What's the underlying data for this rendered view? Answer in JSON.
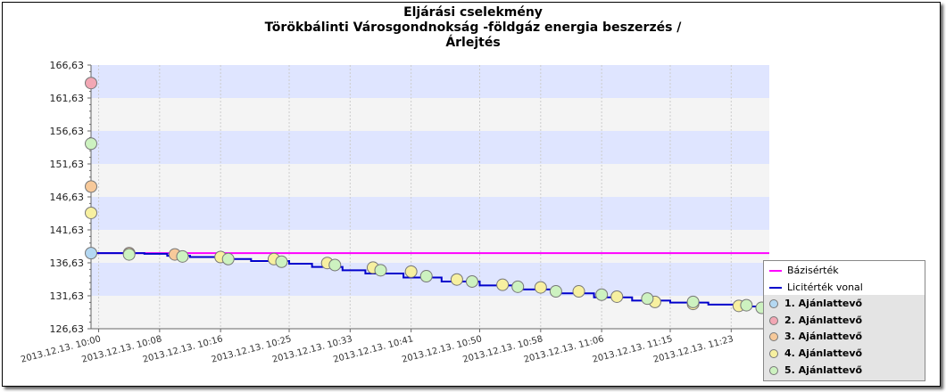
{
  "title": {
    "line1": "Eljárási cselekmény",
    "line2": "Törökbálinti Városgondnokság -földgáz energia beszerzés /",
    "line3": "Árlejtés"
  },
  "colors": {
    "band_blue": "#dfe5ff",
    "band_gray": "#f4f4f4",
    "base_line": "#ff00ff",
    "limit_line": "#0000cc",
    "bidder1": "#b4d8f2",
    "bidder2": "#f2a7b4",
    "bidder3": "#f7c99a",
    "bidder4": "#f7f0a0",
    "bidder5": "#cdf2c0"
  },
  "chart_data": {
    "type": "line",
    "ylim": [
      126.63,
      166.63
    ],
    "y_ticks": [
      "126,63",
      "131,63",
      "136,63",
      "141,63",
      "146,63",
      "151,63",
      "156,63",
      "161,63",
      "166,63"
    ],
    "y_tick_values": [
      126.63,
      131.63,
      136.63,
      141.63,
      146.63,
      151.63,
      156.63,
      161.63,
      166.63
    ],
    "xlim": [
      "2013.12.13. 09:59",
      "2013.12.13. 11:28"
    ],
    "x_ticks": [
      "2013.12.13. 10:00",
      "2013.12.13. 10:08",
      "2013.12.13. 10:16",
      "2013.12.13. 10:25",
      "2013.12.13. 10:33",
      "2013.12.13. 10:41",
      "2013.12.13. 10:50",
      "2013.12.13. 10:58",
      "2013.12.13. 11:06",
      "2013.12.13. 11:15",
      "2013.12.13. 11:23"
    ],
    "grid": true,
    "legend_position": "bottom-right",
    "series": [
      {
        "name": "Bázisérték",
        "kind": "line",
        "color": "#ff00ff",
        "x": [
          "2013.12.13. 09:59",
          "2013.12.13. 11:28"
        ],
        "y": [
          138.1,
          138.1
        ]
      },
      {
        "name": "Licitérték vonal",
        "kind": "step",
        "color": "#0000cc",
        "x": [
          "2013.12.13. 09:59",
          "2013.12.13. 10:03",
          "2013.12.13. 10:06",
          "2013.12.13. 10:09",
          "2013.12.13. 10:12",
          "2013.12.13. 10:16",
          "2013.12.13. 10:20",
          "2013.12.13. 10:25",
          "2013.12.13. 10:28",
          "2013.12.13. 10:32",
          "2013.12.13. 10:35",
          "2013.12.13. 10:40",
          "2013.12.13. 10:45",
          "2013.12.13. 10:50",
          "2013.12.13. 10:55",
          "2013.12.13. 11:00",
          "2013.12.13. 11:05",
          "2013.12.13. 11:10",
          "2013.12.13. 11:15",
          "2013.12.13. 11:20",
          "2013.12.13. 11:25",
          "2013.12.13. 11:28"
        ],
        "y": [
          138.1,
          138.1,
          138.0,
          137.7,
          137.5,
          137.2,
          136.9,
          136.5,
          136.0,
          135.5,
          135.0,
          134.4,
          133.8,
          133.2,
          132.6,
          132.0,
          131.4,
          130.9,
          130.6,
          130.3,
          130.0,
          129.7
        ]
      },
      {
        "name": "1. Ajánlattevő",
        "kind": "points",
        "color": "#b4d8f2",
        "x": [
          "2013.12.13. 09:59"
        ],
        "y": [
          138.1
        ]
      },
      {
        "name": "2. Ajánlattevő",
        "kind": "points",
        "color": "#f2a7b4",
        "x": [
          "2013.12.13. 09:59"
        ],
        "y": [
          163.9
        ]
      },
      {
        "name": "3. Ajánlattevő",
        "kind": "points",
        "color": "#f7c99a",
        "x": [
          "2013.12.13. 09:59",
          "2013.12.13. 10:04",
          "2013.12.13. 10:10"
        ],
        "y": [
          148.2,
          138.1,
          137.9
        ]
      },
      {
        "name": "4. Ajánlattevő",
        "kind": "points",
        "color": "#f7f0a0",
        "x": [
          "2013.12.13. 09:59",
          "2013.12.13. 10:16",
          "2013.12.13. 10:23",
          "2013.12.13. 10:30",
          "2013.12.13. 10:36",
          "2013.12.13. 10:41",
          "2013.12.13. 10:47",
          "2013.12.13. 10:53",
          "2013.12.13. 10:58",
          "2013.12.13. 11:03",
          "2013.12.13. 11:08",
          "2013.12.13. 11:13",
          "2013.12.13. 11:18",
          "2013.12.13. 11:24"
        ],
        "y": [
          144.2,
          137.5,
          137.2,
          136.6,
          135.9,
          135.3,
          134.1,
          133.3,
          132.9,
          132.3,
          131.5,
          130.7,
          130.4,
          130.1
        ]
      },
      {
        "name": "5. Ajánlattevő",
        "kind": "points",
        "color": "#cdf2c0",
        "x": [
          "2013.12.13. 09:59",
          "2013.12.13. 10:04",
          "2013.12.13. 10:11",
          "2013.12.13. 10:17",
          "2013.12.13. 10:24",
          "2013.12.13. 10:31",
          "2013.12.13. 10:37",
          "2013.12.13. 10:43",
          "2013.12.13. 10:49",
          "2013.12.13. 10:55",
          "2013.12.13. 11:00",
          "2013.12.13. 11:06",
          "2013.12.13. 11:12",
          "2013.12.13. 11:18",
          "2013.12.13. 11:25",
          "2013.12.13. 11:27"
        ],
        "y": [
          154.7,
          137.9,
          137.6,
          137.2,
          136.8,
          136.3,
          135.5,
          134.6,
          133.8,
          133.0,
          132.3,
          131.8,
          131.2,
          130.7,
          130.2,
          129.8
        ]
      }
    ]
  },
  "legend": {
    "items": [
      {
        "label": "Bázisérték",
        "type": "line",
        "color": "#ff00ff"
      },
      {
        "label": "Licitérték vonal",
        "type": "line",
        "color": "#0000cc"
      },
      {
        "label": "1. Ajánlattevő",
        "type": "dot",
        "color": "#b4d8f2"
      },
      {
        "label": "2. Ajánlattevő",
        "type": "dot",
        "color": "#f2a7b4"
      },
      {
        "label": "3. Ajánlattevő",
        "type": "dot",
        "color": "#f7c99a"
      },
      {
        "label": "4. Ajánlattevő",
        "type": "dot",
        "color": "#f7f0a0"
      },
      {
        "label": "5. Ajánlattevő",
        "type": "dot",
        "color": "#cdf2c0"
      }
    ]
  }
}
